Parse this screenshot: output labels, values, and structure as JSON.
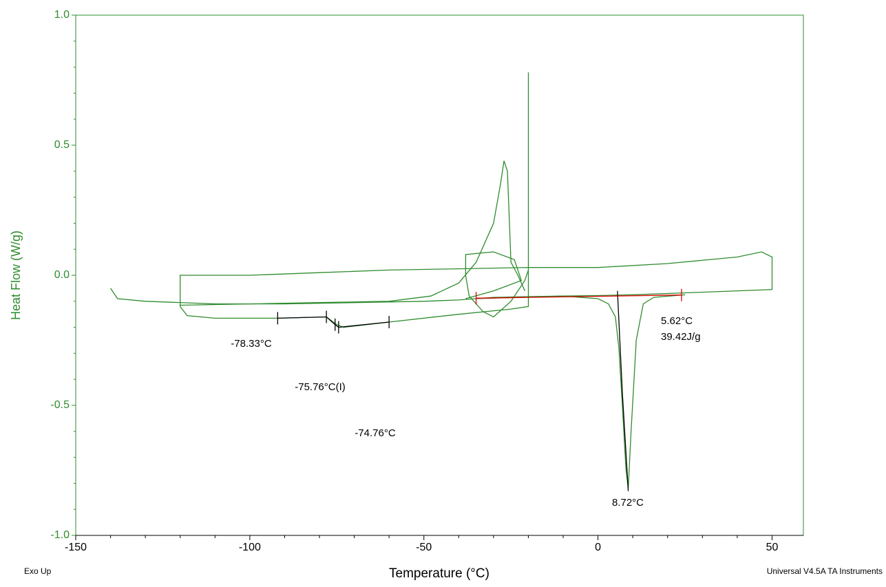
{
  "chart_data": {
    "type": "line",
    "xlabel": "Temperature (°C)",
    "ylabel": "Heat Flow (W/g)",
    "footer_left": "Exo Up",
    "footer_right": "Universal V4.5A TA Instruments",
    "xlim": [
      -150,
      59
    ],
    "ylim": [
      -1,
      1
    ],
    "xticks": [
      -150,
      -100,
      -50,
      0,
      50
    ],
    "yticks": [
      {
        "value": 1,
        "label": "1.0"
      },
      0.5,
      {
        "value": 0,
        "label": "0.0"
      },
      -0.5,
      {
        "value": -1,
        "label": "-1.0"
      }
    ],
    "axis_color": "#2e8b2e",
    "series": [
      {
        "color": "#2e8b2e",
        "x": [
          -140,
          -138,
          -130,
          -110,
          -90,
          -70,
          -50,
          -40,
          -35,
          -30,
          -20,
          -10,
          0,
          10,
          30,
          50,
          50,
          47,
          40,
          20,
          0,
          -20,
          -40,
          -60,
          -80,
          -100,
          -120,
          -120,
          -118,
          -110,
          -92,
          -78,
          -75,
          -73,
          -60,
          -40,
          -25,
          -20,
          -20,
          -20,
          -21,
          -25,
          -30,
          -33,
          -37,
          -38,
          -38,
          -30,
          -24,
          -22,
          -30,
          -38
        ],
        "y": [
          -0.05,
          -0.09,
          -0.1,
          -0.11,
          -0.11,
          -0.105,
          -0.1,
          -0.095,
          -0.09,
          -0.085,
          -0.082,
          -0.08,
          -0.078,
          -0.075,
          -0.065,
          -0.055,
          0.07,
          0.09,
          0.07,
          0.045,
          0.03,
          0.03,
          0.025,
          0.02,
          0.01,
          0.0,
          0.0,
          -0.12,
          -0.155,
          -0.165,
          -0.165,
          -0.16,
          -0.19,
          -0.2,
          -0.18,
          -0.15,
          -0.13,
          -0.12,
          0.78,
          0.02,
          -0.02,
          -0.1,
          -0.16,
          -0.14,
          -0.08,
          0.0,
          0.08,
          0.09,
          0.06,
          -0.02,
          -0.06,
          -0.09
        ]
      },
      {
        "color": "#2e8b2e",
        "x": [
          -120,
          -100,
          -80,
          -60,
          -48,
          -40,
          -35,
          -30,
          -28,
          -27,
          -26,
          -25,
          -23,
          -21
        ],
        "y": [
          -0.115,
          -0.11,
          -0.105,
          -0.1,
          -0.08,
          -0.03,
          0.05,
          0.2,
          0.35,
          0.44,
          0.4,
          0.05,
          0.0,
          -0.06
        ]
      },
      {
        "color": "#2e8b2e",
        "x": [
          -35,
          -10,
          0,
          3,
          5,
          6,
          7,
          8,
          8.7,
          9.5,
          11,
          13,
          16,
          25
        ],
        "y": [
          -0.09,
          -0.08,
          -0.09,
          -0.11,
          -0.16,
          -0.28,
          -0.5,
          -0.74,
          -0.82,
          -0.6,
          -0.25,
          -0.11,
          -0.085,
          -0.075
        ]
      },
      {
        "color": "#000000",
        "marker": "vtick",
        "x": [
          -92,
          -78,
          -75.5,
          -74.5,
          -60
        ],
        "y": [
          -0.165,
          -0.16,
          -0.19,
          -0.2,
          -0.18
        ]
      },
      {
        "color": "#000000",
        "x": [
          5.6,
          7,
          8.7
        ],
        "y": [
          -0.06,
          -0.45,
          -0.83
        ]
      },
      {
        "color": "#dd0000",
        "marker": "vtick",
        "x": [
          -35,
          24
        ],
        "y": [
          -0.088,
          -0.076
        ]
      }
    ],
    "annotations": [
      "-78.33°C",
      "-75.76°C(I)",
      "-74.76°C",
      "5.62°C",
      "39.42J/g",
      "8.72°C"
    ]
  }
}
